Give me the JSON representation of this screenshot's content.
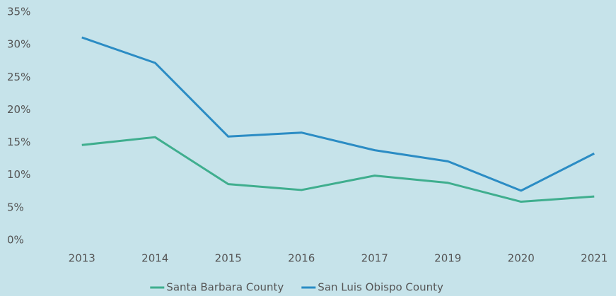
{
  "chart_data": {
    "type": "line",
    "categories": [
      "2013",
      "2014",
      "2015",
      "2016",
      "2017",
      "2019",
      "2020",
      "2021"
    ],
    "series": [
      {
        "name": "Santa Barbara County",
        "color": "#3fae8e",
        "values": [
          14.6,
          15.8,
          8.6,
          7.7,
          9.9,
          8.8,
          5.9,
          6.7
        ]
      },
      {
        "name": "San Luis Obispo County",
        "color": "#2b8cc4",
        "values": [
          31.1,
          27.2,
          15.9,
          16.5,
          13.8,
          12.1,
          7.6,
          13.3
        ]
      }
    ],
    "ylim": [
      0,
      35
    ],
    "yticks": [
      {
        "value": 0,
        "label": "0%"
      },
      {
        "value": 5,
        "label": "5%"
      },
      {
        "value": 10,
        "label": "10%"
      },
      {
        "value": 15,
        "label": "15%"
      },
      {
        "value": 20,
        "label": "20%"
      },
      {
        "value": 25,
        "label": "25%"
      },
      {
        "value": 30,
        "label": "30%"
      },
      {
        "value": 35,
        "label": "35%"
      }
    ],
    "grid": false,
    "legend": "bottom"
  }
}
